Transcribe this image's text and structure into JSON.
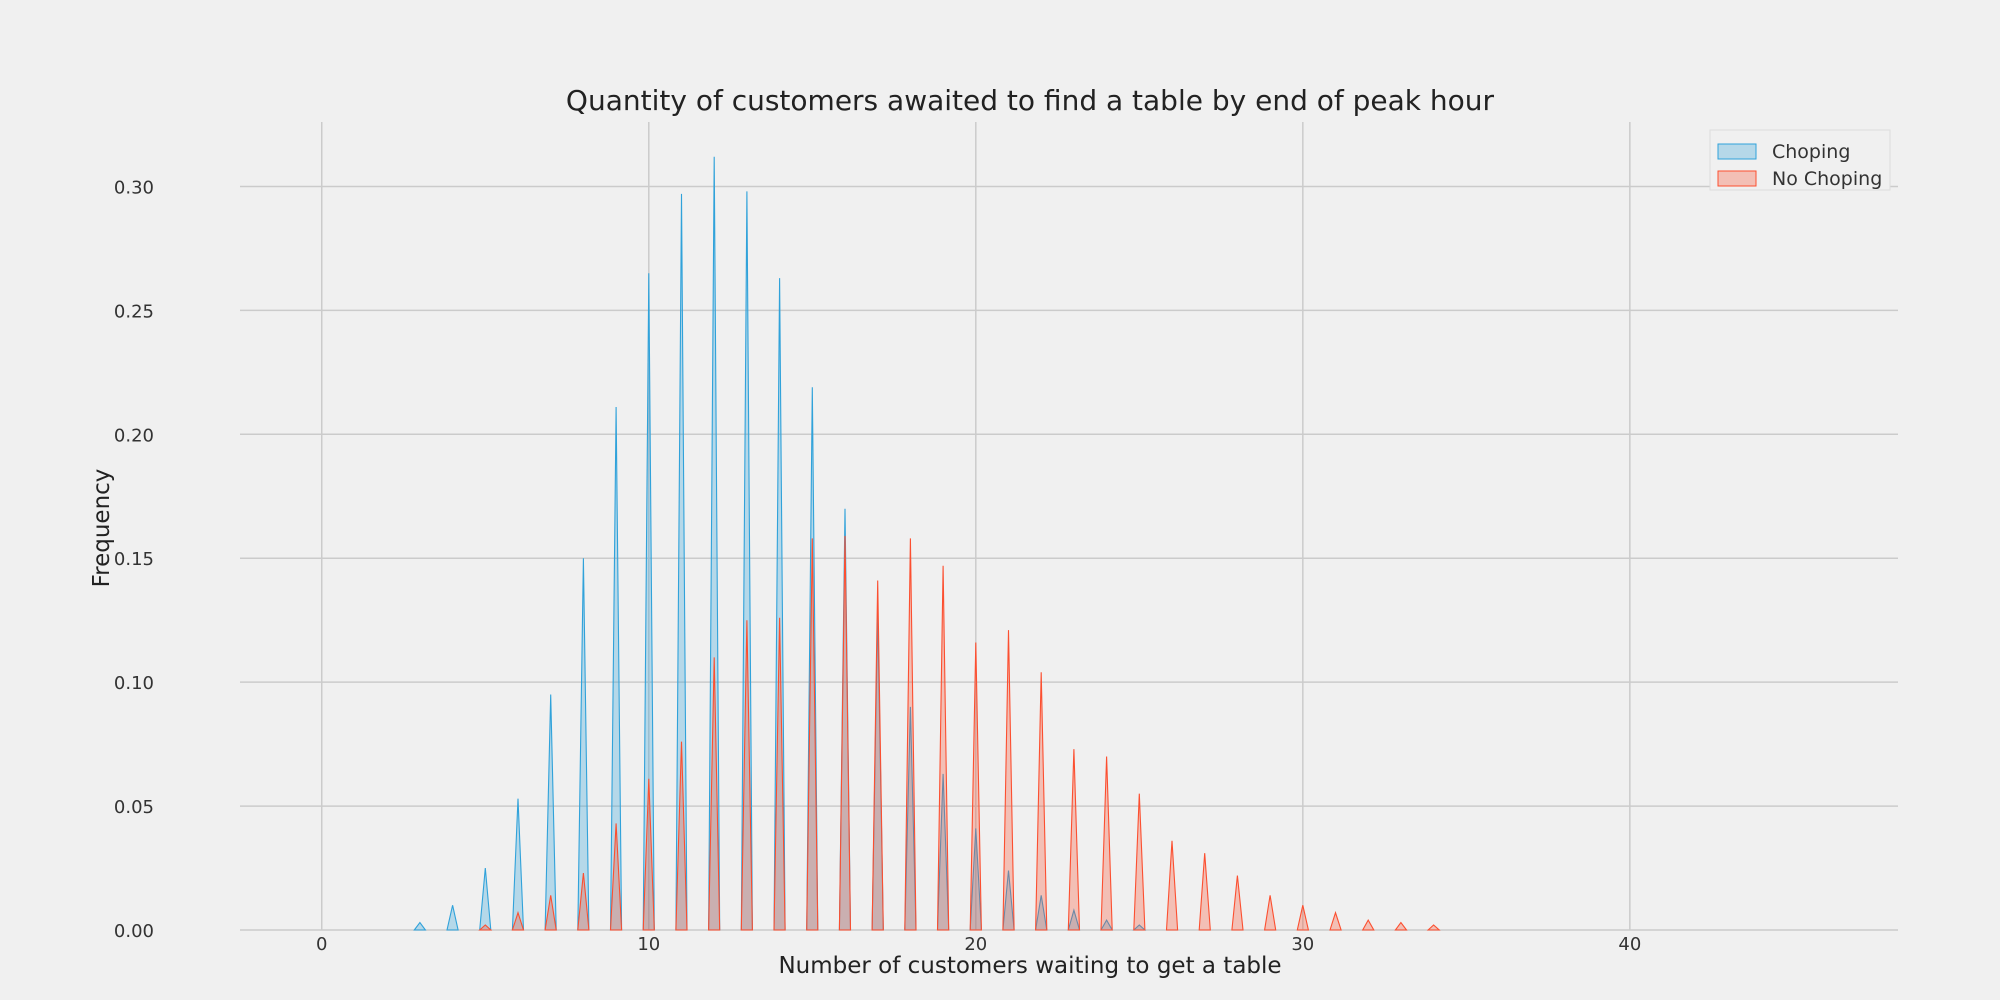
{
  "chart_data": {
    "type": "area",
    "title": "Quantity of customers awaited to find a table by end of peak hour",
    "xlabel": "Number of customers waiting to get a table",
    "ylabel": "Frequency",
    "xlim": [
      -2.5,
      48.2
    ],
    "ylim": [
      0,
      0.326
    ],
    "x_ticks": [
      0,
      10,
      20,
      30,
      40
    ],
    "x_tick_labels": [
      "0",
      "10",
      "20",
      "30",
      "40"
    ],
    "y_ticks": [
      0.0,
      0.05,
      0.1,
      0.15,
      0.2,
      0.25,
      0.3
    ],
    "y_tick_labels": [
      "0.00",
      "0.05",
      "0.10",
      "0.15",
      "0.20",
      "0.25",
      "0.30"
    ],
    "grid": true,
    "legend_position": "top-right",
    "series": [
      {
        "name": "Choping",
        "color": "#30a2da",
        "fill_opacity": 0.3,
        "x": [
          3,
          4,
          5,
          6,
          7,
          8,
          9,
          10,
          11,
          12,
          13,
          14,
          15,
          16,
          17,
          18,
          19,
          20,
          21,
          22,
          23,
          24,
          25
        ],
        "y": [
          0.003,
          0.01,
          0.025,
          0.053,
          0.095,
          0.15,
          0.211,
          0.265,
          0.297,
          0.312,
          0.298,
          0.263,
          0.219,
          0.17,
          0.128,
          0.09,
          0.063,
          0.041,
          0.024,
          0.014,
          0.008,
          0.004,
          0.002
        ]
      },
      {
        "name": "No Choping",
        "color": "#fc4f30",
        "fill_opacity": 0.3,
        "x": [
          5,
          6,
          7,
          8,
          9,
          10,
          11,
          12,
          13,
          14,
          15,
          16,
          17,
          18,
          19,
          20,
          21,
          22,
          23,
          24,
          25,
          26,
          27,
          28,
          29,
          30,
          31,
          32,
          33,
          34
        ],
        "y": [
          0.002,
          0.007,
          0.014,
          0.023,
          0.043,
          0.061,
          0.076,
          0.11,
          0.125,
          0.126,
          0.158,
          0.159,
          0.141,
          0.158,
          0.147,
          0.116,
          0.121,
          0.104,
          0.073,
          0.07,
          0.055,
          0.036,
          0.031,
          0.022,
          0.014,
          0.01,
          0.007,
          0.004,
          0.003,
          0.002
        ]
      }
    ]
  }
}
